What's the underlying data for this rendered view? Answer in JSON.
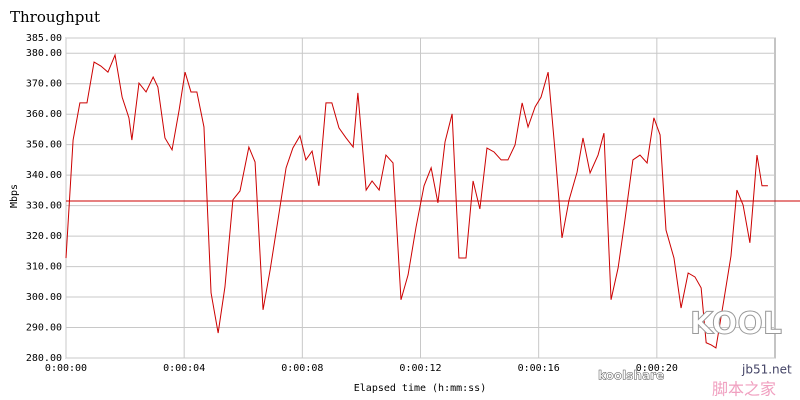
{
  "chart_data": {
    "type": "line",
    "title": "Throughput",
    "x_label": "Elapsed time (h:mm:ss)",
    "y_label": "Mbps",
    "xlim": [
      0,
      24
    ],
    "ylim": [
      280,
      385
    ],
    "xticks": [
      {
        "value": 0,
        "label": "0:00:00"
      },
      {
        "value": 4,
        "label": "0:00:04"
      },
      {
        "value": 8,
        "label": "0:00:08"
      },
      {
        "value": 12,
        "label": "0:00:12"
      },
      {
        "value": 16,
        "label": "0:00:16"
      },
      {
        "value": 20,
        "label": "0:00:20"
      }
    ],
    "yticks": [
      {
        "value": 280,
        "label": "280.00"
      },
      {
        "value": 290,
        "label": "290.00"
      },
      {
        "value": 300,
        "label": "300.00"
      },
      {
        "value": 310,
        "label": "310.00"
      },
      {
        "value": 320,
        "label": "320.00"
      },
      {
        "value": 330,
        "label": "330.00"
      },
      {
        "value": 340,
        "label": "340.00"
      },
      {
        "value": 350,
        "label": "350.00"
      },
      {
        "value": 360,
        "label": "360.00"
      },
      {
        "value": 370,
        "label": "370.00"
      },
      {
        "value": 380,
        "label": "380.00"
      },
      {
        "value": 385,
        "label": "385.00"
      }
    ],
    "grid": true,
    "reference_line": 331.5,
    "x": [
      0,
      0.24,
      0.47,
      0.71,
      0.95,
      1.18,
      1.42,
      1.66,
      1.9,
      2.13,
      2.23,
      2.47,
      2.71,
      2.95,
      3.11,
      3.35,
      3.59,
      3.83,
      4.03,
      4.23,
      4.43,
      4.67,
      4.91,
      5.15,
      5.38,
      5.65,
      5.89,
      6.19,
      6.4,
      6.67,
      6.91,
      7.18,
      7.45,
      7.68,
      7.92,
      8.12,
      8.33,
      8.56,
      8.8,
      9.0,
      9.24,
      9.48,
      9.72,
      9.88,
      10.16,
      10.36,
      10.6,
      10.83,
      11.07,
      11.34,
      11.58,
      11.85,
      12.12,
      12.36,
      12.59,
      12.83,
      13.07,
      13.3,
      13.54,
      13.78,
      14.01,
      14.25,
      14.49,
      14.73,
      14.96,
      15.2,
      15.44,
      15.64,
      15.88,
      16.08,
      16.32,
      16.55,
      16.79,
      17.03,
      17.3,
      17.5,
      17.74,
      18.01,
      18.21,
      18.45,
      18.69,
      18.92,
      19.19,
      19.43,
      19.67,
      19.9,
      20.11,
      20.31,
      20.58,
      20.82,
      21.06,
      21.29,
      21.5,
      21.67,
      21.84,
      22.0,
      22.27,
      22.51,
      22.71,
      22.92,
      23.15,
      23.39,
      23.56,
      23.76
    ],
    "series": [
      {
        "name": "Throughput",
        "color": "#cc0000",
        "values": [
          312.8,
          351.5,
          363.7,
          363.7,
          377.1,
          375.8,
          373.8,
          379.4,
          365.6,
          358.8,
          351.5,
          370.2,
          367.3,
          372.2,
          368.9,
          352.2,
          348.3,
          361.4,
          373.8,
          367.3,
          367.3,
          355.8,
          301.4,
          288.2,
          303.3,
          331.9,
          334.8,
          349.2,
          344.3,
          295.8,
          308.9,
          325.6,
          342.4,
          348.9,
          352.9,
          345.0,
          347.9,
          336.5,
          363.7,
          363.7,
          355.5,
          352.2,
          349.2,
          367.0,
          335.1,
          338.1,
          335.1,
          346.6,
          344.0,
          299.1,
          307.3,
          323.0,
          336.5,
          342.4,
          330.9,
          350.9,
          360.1,
          312.8,
          312.8,
          338.1,
          328.9,
          348.9,
          347.6,
          345.0,
          345.0,
          349.9,
          363.7,
          355.8,
          362.4,
          365.6,
          373.8,
          348.3,
          319.4,
          331.9,
          341.0,
          352.2,
          340.7,
          346.6,
          353.8,
          299.1,
          309.6,
          325.3,
          345.0,
          346.6,
          344.0,
          358.8,
          353.2,
          322.0,
          312.8,
          296.4,
          307.9,
          306.6,
          303.0,
          285.0,
          284.3,
          283.3,
          299.1,
          313.5,
          335.1,
          330.2,
          317.8,
          346.6,
          336.5,
          336.5
        ]
      }
    ],
    "watermarks": [
      "KOOL",
      "koolshare",
      "jb51.net",
      "脚本之家"
    ]
  }
}
